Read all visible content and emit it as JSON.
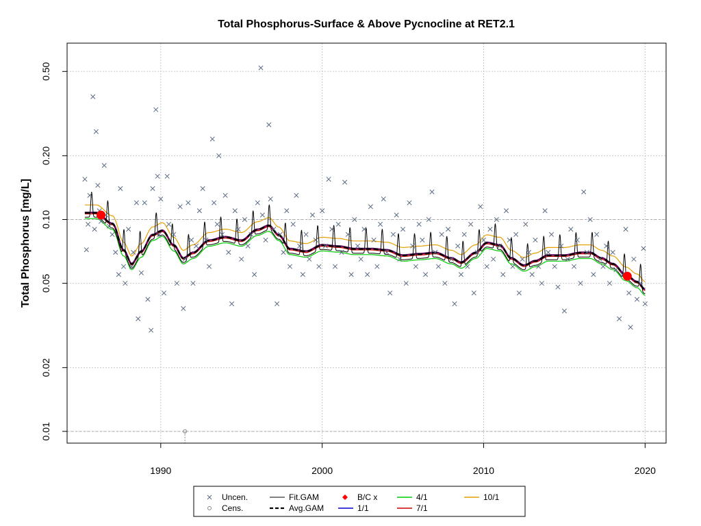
{
  "chart_data": {
    "type": "scatter",
    "title": "Total Phosphorus-Surface & Above Pycnocline at RET2.1",
    "xlabel": "",
    "ylabel": "Total Phosphorus [mg/L]",
    "xlim": [
      1984.2,
      2021.3
    ],
    "ylim": [
      0.0088,
      0.68
    ],
    "log_y": true,
    "grid": true,
    "legend_position": "bottom",
    "x_ticks": [
      1990,
      2000,
      2010,
      2020
    ],
    "y_ticks": [
      0.01,
      0.02,
      0.05,
      0.1,
      0.2,
      0.5
    ],
    "y_tick_labels": [
      "0.01",
      "0.02",
      "0.05",
      "0.10",
      "0.20",
      "0.50"
    ],
    "reference_lines": {
      "y": [
        0.01,
        0.1
      ]
    },
    "colors": {
      "uncen": "#5A6A82",
      "cens": "#888888",
      "fit_gam": "#000000",
      "avg_gam": "#000000",
      "bc": "#FF0000",
      "s1_1": "#0000CC",
      "s4_1": "#00CC00",
      "s7_1": "#CC0000",
      "s10_1": "#E69F00",
      "combined_1_7": "#660066"
    },
    "uncensored_points": [
      [
        1985.3,
        0.155
      ],
      [
        1985.4,
        0.072
      ],
      [
        1985.5,
        0.095
      ],
      [
        1985.6,
        0.13
      ],
      [
        1985.8,
        0.38
      ],
      [
        1985.9,
        0.09
      ],
      [
        1986.0,
        0.26
      ],
      [
        1986.1,
        0.145
      ],
      [
        1986.2,
        0.11
      ],
      [
        1986.3,
        0.098
      ],
      [
        1986.5,
        0.18
      ],
      [
        1986.6,
        0.105
      ],
      [
        1986.8,
        0.093
      ],
      [
        1987.0,
        0.085
      ],
      [
        1987.2,
        0.07
      ],
      [
        1987.4,
        0.055
      ],
      [
        1987.5,
        0.14
      ],
      [
        1987.7,
        0.06
      ],
      [
        1987.8,
        0.05
      ],
      [
        1988.0,
        0.09
      ],
      [
        1988.2,
        0.06
      ],
      [
        1988.3,
        0.07
      ],
      [
        1988.5,
        0.12
      ],
      [
        1988.6,
        0.034
      ],
      [
        1988.8,
        0.056
      ],
      [
        1989.0,
        0.12
      ],
      [
        1989.2,
        0.042
      ],
      [
        1989.4,
        0.03
      ],
      [
        1989.5,
        0.14
      ],
      [
        1989.7,
        0.33
      ],
      [
        1989.8,
        0.16
      ],
      [
        1989.9,
        0.085
      ],
      [
        1990.0,
        0.125
      ],
      [
        1990.2,
        0.045
      ],
      [
        1990.4,
        0.16
      ],
      [
        1990.5,
        0.095
      ],
      [
        1990.8,
        0.085
      ],
      [
        1991.0,
        0.05
      ],
      [
        1991.2,
        0.115
      ],
      [
        1991.4,
        0.038
      ],
      [
        1991.5,
        0.065
      ],
      [
        1991.7,
        0.12
      ],
      [
        1991.9,
        0.08
      ],
      [
        1992.0,
        0.05
      ],
      [
        1992.2,
        0.075
      ],
      [
        1992.4,
        0.11
      ],
      [
        1992.6,
        0.14
      ],
      [
        1992.8,
        0.08
      ],
      [
        1993.0,
        0.06
      ],
      [
        1993.2,
        0.24
      ],
      [
        1993.3,
        0.12
      ],
      [
        1993.5,
        0.095
      ],
      [
        1993.6,
        0.2
      ],
      [
        1993.8,
        0.085
      ],
      [
        1994.0,
        0.13
      ],
      [
        1994.2,
        0.07
      ],
      [
        1994.4,
        0.04
      ],
      [
        1994.6,
        0.11
      ],
      [
        1994.8,
        0.09
      ],
      [
        1995.0,
        0.065
      ],
      [
        1995.2,
        0.1
      ],
      [
        1995.4,
        0.075
      ],
      [
        1995.6,
        0.085
      ],
      [
        1995.8,
        0.055
      ],
      [
        1996.0,
        0.12
      ],
      [
        1996.2,
        0.52
      ],
      [
        1996.3,
        0.105
      ],
      [
        1996.5,
        0.08
      ],
      [
        1996.7,
        0.28
      ],
      [
        1996.8,
        0.125
      ],
      [
        1997.0,
        0.09
      ],
      [
        1997.2,
        0.04
      ],
      [
        1997.4,
        0.085
      ],
      [
        1997.6,
        0.07
      ],
      [
        1997.8,
        0.11
      ],
      [
        1998.0,
        0.06
      ],
      [
        1998.2,
        0.095
      ],
      [
        1998.4,
        0.13
      ],
      [
        1998.6,
        0.075
      ],
      [
        1998.8,
        0.055
      ],
      [
        1999.0,
        0.085
      ],
      [
        1999.2,
        0.065
      ],
      [
        1999.4,
        0.105
      ],
      [
        1999.6,
        0.08
      ],
      [
        1999.8,
        0.06
      ],
      [
        2000.0,
        0.11
      ],
      [
        2000.2,
        0.075
      ],
      [
        2000.4,
        0.155
      ],
      [
        2000.6,
        0.09
      ],
      [
        2000.8,
        0.06
      ],
      [
        2001.0,
        0.095
      ],
      [
        2001.2,
        0.07
      ],
      [
        2001.4,
        0.15
      ],
      [
        2001.6,
        0.085
      ],
      [
        2001.8,
        0.055
      ],
      [
        2002.0,
        0.1
      ],
      [
        2002.2,
        0.075
      ],
      [
        2002.4,
        0.065
      ],
      [
        2002.6,
        0.09
      ],
      [
        2002.8,
        0.055
      ],
      [
        2003.0,
        0.115
      ],
      [
        2003.2,
        0.08
      ],
      [
        2003.4,
        0.06
      ],
      [
        2003.6,
        0.095
      ],
      [
        2003.8,
        0.125
      ],
      [
        2004.0,
        0.07
      ],
      [
        2004.2,
        0.045
      ],
      [
        2004.4,
        0.085
      ],
      [
        2004.6,
        0.105
      ],
      [
        2004.8,
        0.065
      ],
      [
        2005.0,
        0.09
      ],
      [
        2005.2,
        0.05
      ],
      [
        2005.4,
        0.12
      ],
      [
        2005.6,
        0.075
      ],
      [
        2005.8,
        0.06
      ],
      [
        2006.0,
        0.095
      ],
      [
        2006.2,
        0.08
      ],
      [
        2006.4,
        0.055
      ],
      [
        2006.6,
        0.1
      ],
      [
        2006.8,
        0.135
      ],
      [
        2007.0,
        0.07
      ],
      [
        2007.2,
        0.06
      ],
      [
        2007.4,
        0.085
      ],
      [
        2007.6,
        0.05
      ],
      [
        2007.8,
        0.09
      ],
      [
        2008.0,
        0.065
      ],
      [
        2008.2,
        0.04
      ],
      [
        2008.4,
        0.075
      ],
      [
        2008.6,
        0.055
      ],
      [
        2008.8,
        0.085
      ],
      [
        2009.0,
        0.06
      ],
      [
        2009.2,
        0.095
      ],
      [
        2009.4,
        0.045
      ],
      [
        2009.6,
        0.07
      ],
      [
        2009.8,
        0.115
      ],
      [
        2010.0,
        0.08
      ],
      [
        2010.2,
        0.06
      ],
      [
        2010.4,
        0.09
      ],
      [
        2010.6,
        0.065
      ],
      [
        2010.8,
        0.1
      ],
      [
        2011.0,
        0.075
      ],
      [
        2011.2,
        0.055
      ],
      [
        2011.4,
        0.11
      ],
      [
        2011.6,
        0.08
      ],
      [
        2011.8,
        0.06
      ],
      [
        2012.0,
        0.085
      ],
      [
        2012.2,
        0.045
      ],
      [
        2012.4,
        0.065
      ],
      [
        2012.6,
        0.095
      ],
      [
        2012.8,
        0.07
      ],
      [
        2013.0,
        0.055
      ],
      [
        2013.2,
        0.08
      ],
      [
        2013.4,
        0.06
      ],
      [
        2013.6,
        0.05
      ],
      [
        2013.8,
        0.11
      ],
      [
        2014.0,
        0.07
      ],
      [
        2014.2,
        0.085
      ],
      [
        2014.4,
        0.06
      ],
      [
        2014.6,
        0.048
      ],
      [
        2014.8,
        0.075
      ],
      [
        2015.0,
        0.037
      ],
      [
        2015.2,
        0.065
      ],
      [
        2015.4,
        0.09
      ],
      [
        2015.6,
        0.06
      ],
      [
        2015.8,
        0.08
      ],
      [
        2016.0,
        0.05
      ],
      [
        2016.2,
        0.135
      ],
      [
        2016.4,
        0.07
      ],
      [
        2016.6,
        0.1
      ],
      [
        2016.8,
        0.055
      ],
      [
        2017.0,
        0.085
      ],
      [
        2017.2,
        0.065
      ],
      [
        2017.4,
        0.06
      ],
      [
        2017.6,
        0.075
      ],
      [
        2017.8,
        0.05
      ],
      [
        2018.0,
        0.07
      ],
      [
        2018.2,
        0.058
      ],
      [
        2018.4,
        0.034
      ],
      [
        2018.6,
        0.055
      ],
      [
        2018.8,
        0.09
      ],
      [
        2019.0,
        0.045
      ],
      [
        2019.1,
        0.031
      ],
      [
        2019.3,
        0.065
      ],
      [
        2019.5,
        0.042
      ],
      [
        2019.7,
        0.05
      ],
      [
        2019.9,
        0.073
      ],
      [
        2020.0,
        0.04
      ]
    ],
    "censored_points": [
      [
        1991.5,
        0.01
      ]
    ],
    "bc_points": [
      [
        1986.3,
        0.105
      ],
      [
        2018.9,
        0.054
      ]
    ],
    "trend_knots": {
      "x": [
        1985.0,
        1986.0,
        1987.0,
        1987.7,
        1988.2,
        1988.8,
        1989.5,
        1990.1,
        1990.8,
        1991.4,
        1992.0,
        1993.0,
        1994.0,
        1995.0,
        1996.0,
        1996.7,
        1997.3,
        1998.0,
        1999.0,
        2000.0,
        2001.0,
        2002.0,
        2003.0,
        2004.0,
        2005.0,
        2006.0,
        2007.0,
        2008.0,
        2008.6,
        2009.5,
        2010.2,
        2011.0,
        2011.7,
        2012.5,
        2013.2,
        2014.0,
        2015.0,
        2016.0,
        2016.6,
        2017.3,
        2018.0,
        2018.8,
        2019.5,
        2020.0
      ],
      "y": [
        0.108,
        0.108,
        0.096,
        0.072,
        0.062,
        0.071,
        0.085,
        0.089,
        0.076,
        0.066,
        0.07,
        0.08,
        0.083,
        0.08,
        0.09,
        0.094,
        0.085,
        0.073,
        0.071,
        0.076,
        0.075,
        0.073,
        0.073,
        0.072,
        0.068,
        0.069,
        0.07,
        0.066,
        0.063,
        0.07,
        0.078,
        0.076,
        0.066,
        0.061,
        0.064,
        0.068,
        0.068,
        0.07,
        0.07,
        0.066,
        0.062,
        0.055,
        0.051,
        0.047
      ]
    },
    "legend": [
      {
        "label": "Uncen.",
        "symbol": "x"
      },
      {
        "label": "Cens.",
        "symbol": "o"
      },
      {
        "label": "Fit.GAM",
        "symbol": "line"
      },
      {
        "label": "Avg.GAM",
        "symbol": "dashed"
      },
      {
        "label": "B/C x",
        "symbol": "diamond"
      },
      {
        "label": "1/1",
        "symbol": "line"
      },
      {
        "label": "4/1",
        "symbol": "line"
      },
      {
        "label": "7/1",
        "symbol": "line"
      },
      {
        "label": "10/1",
        "symbol": "line"
      }
    ]
  }
}
